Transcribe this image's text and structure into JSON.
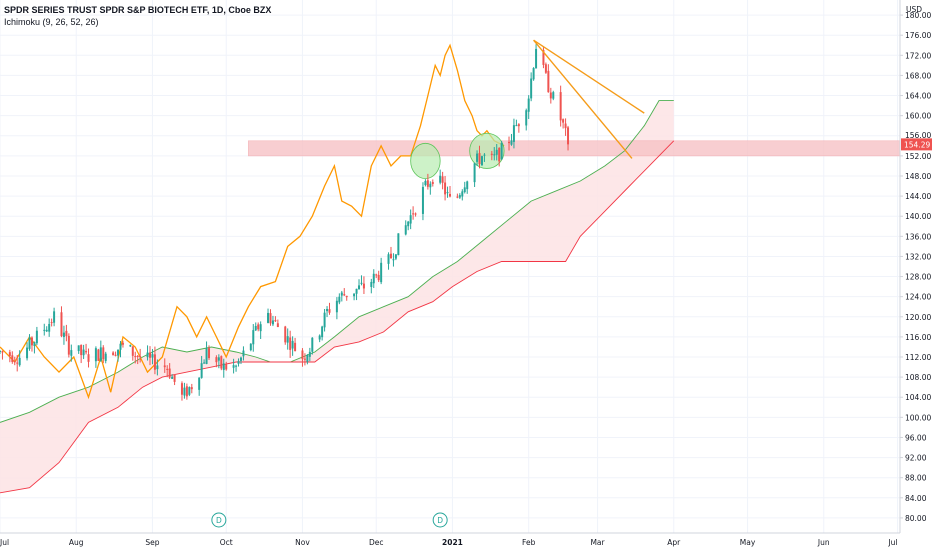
{
  "header": {
    "title": "SPDR SERIES TRUST SPDR S&P BIOTECH ETF, 1D, Cboe BZX",
    "indicator": "Ichimoku (9, 26, 52, 26)"
  },
  "colors": {
    "up": "#26a69a",
    "down": "#ef5350",
    "lagging": "#ff9800",
    "span_a": "#4caf50",
    "span_b": "#f23645",
    "cloud": "#fde3e4",
    "zone": "#f7c3c6",
    "highlight": "#b8ecb0",
    "trendline": "#f59c1a",
    "price_label_bg": "#ef5350",
    "grid": "#f0f3fa",
    "axis_text": "#131722"
  },
  "chart_data": {
    "type": "candlestick",
    "title": "SPDR SERIES TRUST SPDR S&P BIOTECH ETF, 1D, Cboe BZX",
    "currency": "USD",
    "ylim": [
      77,
      183
    ],
    "y_ticks": [
      80,
      84,
      88,
      92,
      96,
      100,
      104,
      108,
      112,
      116,
      120,
      124,
      128,
      132,
      136,
      140,
      144,
      148,
      152,
      156,
      160,
      164,
      168,
      172,
      176,
      180
    ],
    "x_ticks": [
      "Jul",
      "Aug",
      "Sep",
      "Oct",
      "Nov",
      "Dec",
      "2021",
      "Feb",
      "Mar",
      "Apr",
      "May",
      "Jun",
      "Jul"
    ],
    "x_tick_days": [
      0,
      31,
      62,
      92,
      123,
      153,
      184,
      215,
      243,
      274,
      304,
      335,
      365
    ],
    "x_range_days": [
      0,
      366
    ],
    "last_price": 154.29,
    "last_price_label": "154.29",
    "price_tag_156": "156.00",
    "support_zone": {
      "low": 152.0,
      "high": 155.0,
      "from_day": 101,
      "to_day": 366
    },
    "anchors": [
      {
        "day": 0,
        "price": 113
      },
      {
        "day": 8,
        "price": 112
      },
      {
        "day": 15,
        "price": 116
      },
      {
        "day": 22,
        "price": 120
      },
      {
        "day": 28,
        "price": 114
      },
      {
        "day": 35,
        "price": 112
      },
      {
        "day": 42,
        "price": 113
      },
      {
        "day": 50,
        "price": 114
      },
      {
        "day": 57,
        "price": 112
      },
      {
        "day": 62,
        "price": 111
      },
      {
        "day": 68,
        "price": 110
      },
      {
        "day": 74,
        "price": 104
      },
      {
        "day": 79,
        "price": 107
      },
      {
        "day": 84,
        "price": 113
      },
      {
        "day": 90,
        "price": 110
      },
      {
        "day": 96,
        "price": 110
      },
      {
        "day": 102,
        "price": 115
      },
      {
        "day": 108,
        "price": 121
      },
      {
        "day": 113,
        "price": 118
      },
      {
        "day": 118,
        "price": 115
      },
      {
        "day": 123,
        "price": 112
      },
      {
        "day": 128,
        "price": 115
      },
      {
        "day": 133,
        "price": 121
      },
      {
        "day": 138,
        "price": 124
      },
      {
        "day": 143,
        "price": 125
      },
      {
        "day": 148,
        "price": 126
      },
      {
        "day": 153,
        "price": 128
      },
      {
        "day": 158,
        "price": 131
      },
      {
        "day": 163,
        "price": 136
      },
      {
        "day": 168,
        "price": 141
      },
      {
        "day": 172,
        "price": 145
      },
      {
        "day": 176,
        "price": 148
      },
      {
        "day": 180,
        "price": 146
      },
      {
        "day": 184,
        "price": 142
      },
      {
        "day": 188,
        "price": 146
      },
      {
        "day": 192,
        "price": 150
      },
      {
        "day": 196,
        "price": 152
      },
      {
        "day": 200,
        "price": 151
      },
      {
        "day": 204,
        "price": 153
      },
      {
        "day": 208,
        "price": 156
      },
      {
        "day": 212,
        "price": 160
      },
      {
        "day": 215,
        "price": 164
      },
      {
        "day": 218,
        "price": 174
      },
      {
        "day": 220,
        "price": 170
      },
      {
        "day": 223,
        "price": 166
      },
      {
        "day": 226,
        "price": 162
      },
      {
        "day": 229,
        "price": 158
      },
      {
        "day": 231,
        "price": 154.29
      }
    ],
    "lagging_span": [
      {
        "day": 0,
        "price": 114
      },
      {
        "day": 6,
        "price": 111
      },
      {
        "day": 12,
        "price": 116
      },
      {
        "day": 18,
        "price": 112
      },
      {
        "day": 24,
        "price": 109
      },
      {
        "day": 30,
        "price": 112
      },
      {
        "day": 36,
        "price": 104
      },
      {
        "day": 41,
        "price": 112
      },
      {
        "day": 45,
        "price": 105
      },
      {
        "day": 50,
        "price": 116
      },
      {
        "day": 55,
        "price": 114
      },
      {
        "day": 60,
        "price": 109
      },
      {
        "day": 66,
        "price": 112
      },
      {
        "day": 72,
        "price": 122
      },
      {
        "day": 76,
        "price": 120
      },
      {
        "day": 80,
        "price": 116
      },
      {
        "day": 84,
        "price": 120
      },
      {
        "day": 88,
        "price": 116
      },
      {
        "day": 92,
        "price": 112
      },
      {
        "day": 97,
        "price": 118
      },
      {
        "day": 101,
        "price": 122
      },
      {
        "day": 106,
        "price": 126
      },
      {
        "day": 112,
        "price": 127
      },
      {
        "day": 117,
        "price": 134
      },
      {
        "day": 122,
        "price": 136
      },
      {
        "day": 127,
        "price": 140
      },
      {
        "day": 132,
        "price": 146
      },
      {
        "day": 136,
        "price": 150
      },
      {
        "day": 139,
        "price": 143
      },
      {
        "day": 143,
        "price": 142
      },
      {
        "day": 147,
        "price": 140
      },
      {
        "day": 151,
        "price": 150
      },
      {
        "day": 155,
        "price": 154
      },
      {
        "day": 159,
        "price": 150
      },
      {
        "day": 163,
        "price": 152
      },
      {
        "day": 167,
        "price": 152
      },
      {
        "day": 171,
        "price": 158
      },
      {
        "day": 174,
        "price": 164
      },
      {
        "day": 177,
        "price": 170
      },
      {
        "day": 179,
        "price": 168
      },
      {
        "day": 181,
        "price": 172
      },
      {
        "day": 183,
        "price": 174
      },
      {
        "day": 186,
        "price": 169
      },
      {
        "day": 189,
        "price": 163
      },
      {
        "day": 192,
        "price": 160
      },
      {
        "day": 194,
        "price": 157
      },
      {
        "day": 196,
        "price": 156
      },
      {
        "day": 198,
        "price": 157
      },
      {
        "day": 201,
        "price": 155
      },
      {
        "day": 205,
        "price": 154
      }
    ],
    "span_a": [
      {
        "day": 0,
        "price": 99
      },
      {
        "day": 12,
        "price": 101
      },
      {
        "day": 24,
        "price": 104
      },
      {
        "day": 36,
        "price": 106
      },
      {
        "day": 48,
        "price": 109
      },
      {
        "day": 58,
        "price": 112
      },
      {
        "day": 66,
        "price": 114
      },
      {
        "day": 76,
        "price": 113
      },
      {
        "day": 86,
        "price": 114
      },
      {
        "day": 96,
        "price": 113
      },
      {
        "day": 104,
        "price": 112
      },
      {
        "day": 110,
        "price": 111
      },
      {
        "day": 118,
        "price": 111
      },
      {
        "day": 128,
        "price": 113
      },
      {
        "day": 136,
        "price": 116
      },
      {
        "day": 146,
        "price": 120
      },
      {
        "day": 156,
        "price": 122
      },
      {
        "day": 166,
        "price": 124
      },
      {
        "day": 176,
        "price": 128
      },
      {
        "day": 186,
        "price": 131
      },
      {
        "day": 196,
        "price": 135
      },
      {
        "day": 206,
        "price": 139
      },
      {
        "day": 216,
        "price": 143
      },
      {
        "day": 226,
        "price": 145
      },
      {
        "day": 236,
        "price": 147
      },
      {
        "day": 246,
        "price": 150
      },
      {
        "day": 254,
        "price": 153
      },
      {
        "day": 262,
        "price": 158
      },
      {
        "day": 268,
        "price": 163
      },
      {
        "day": 274,
        "price": 163
      }
    ],
    "span_b": [
      {
        "day": 0,
        "price": 85
      },
      {
        "day": 12,
        "price": 86
      },
      {
        "day": 24,
        "price": 91
      },
      {
        "day": 36,
        "price": 99
      },
      {
        "day": 48,
        "price": 102
      },
      {
        "day": 58,
        "price": 106
      },
      {
        "day": 66,
        "price": 108
      },
      {
        "day": 76,
        "price": 109
      },
      {
        "day": 86,
        "price": 110
      },
      {
        "day": 96,
        "price": 111
      },
      {
        "day": 104,
        "price": 111
      },
      {
        "day": 116,
        "price": 111
      },
      {
        "day": 128,
        "price": 111
      },
      {
        "day": 136,
        "price": 114
      },
      {
        "day": 146,
        "price": 115
      },
      {
        "day": 156,
        "price": 117
      },
      {
        "day": 166,
        "price": 121
      },
      {
        "day": 176,
        "price": 123
      },
      {
        "day": 184,
        "price": 126
      },
      {
        "day": 194,
        "price": 129
      },
      {
        "day": 204,
        "price": 131
      },
      {
        "day": 214,
        "price": 131
      },
      {
        "day": 224,
        "price": 131
      },
      {
        "day": 230,
        "price": 131
      },
      {
        "day": 236,
        "price": 136
      },
      {
        "day": 246,
        "price": 141
      },
      {
        "day": 256,
        "price": 146
      },
      {
        "day": 264,
        "price": 150
      },
      {
        "day": 274,
        "price": 155
      }
    ],
    "highlight_ellipses": [
      {
        "day": 173,
        "price": 151,
        "rx_days": 6,
        "ry_price": 3.5
      },
      {
        "day": 198,
        "price": 153,
        "rx_days": 7,
        "ry_price": 3.5
      }
    ],
    "trendlines": [
      {
        "from": {
          "day": 217,
          "price": 175
        },
        "to": {
          "day": 262,
          "price": 160.5
        }
      },
      {
        "from": {
          "day": 217,
          "price": 175
        },
        "to": {
          "day": 257,
          "price": 151.5
        }
      }
    ],
    "dividend_markers": [
      {
        "day": 89,
        "label": "D"
      },
      {
        "day": 179,
        "label": "D"
      }
    ]
  }
}
